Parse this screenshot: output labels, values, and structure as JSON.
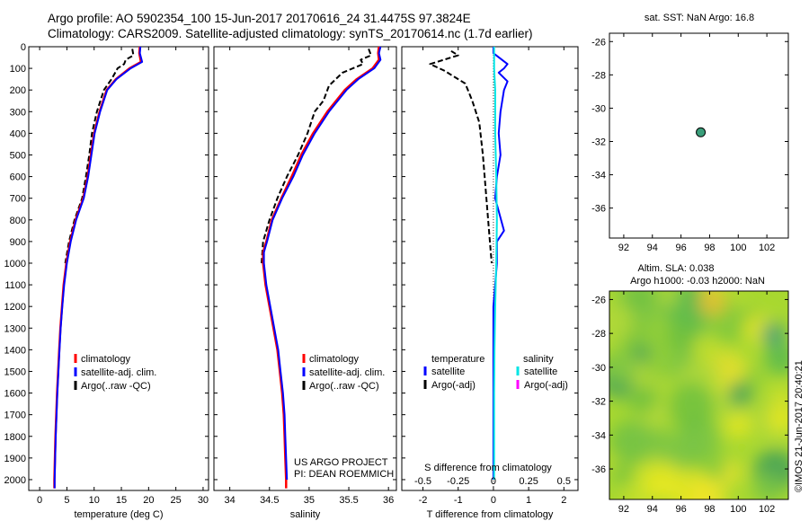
{
  "header": {
    "line1": "Argo profile: AO 5902354_100 15-Jun-2017 20170616_24 31.4475S 97.3824E",
    "line2": "Climatology: CARS2009. Satellite-adjusted climatology: synTS_20170614.nc (1.7d earlier)"
  },
  "colors": {
    "climatology": "#ff0000",
    "satellite": "#0000ff",
    "argo": "#000000",
    "sal_satellite": "#00e5e5",
    "sal_argo": "#ff00ff",
    "marker": "#3a9e7a"
  },
  "legend": {
    "climatology": "climatology",
    "satellite_clim": "satellite-adj. clim.",
    "argo_raw": "Argo(..raw -QC)",
    "temperature": "temperature",
    "salinity": "salinity",
    "satellite": "satellite",
    "argo_adj": "Argo(-adj)"
  },
  "annotations": {
    "project_line1": "US ARGO PROJECT",
    "project_line2": "PI: DEAN ROEMMICH",
    "s_diff_label": "S difference from climatology",
    "sst_label": "sat. SST: NaN Argo: 16.8",
    "sla_label": "Altim. SLA: 0.038",
    "h_label": "Argo h1000: -0.03 h2000: NaN",
    "credit": "©IMOS 21-Jun-2017 20:40:21"
  },
  "chart_data": [
    {
      "type": "line",
      "xlabel": "temperature (deg C)",
      "xlim": [
        -2,
        31
      ],
      "x_ticks": [
        0,
        5,
        10,
        15,
        20,
        25,
        30
      ],
      "ylim": [
        2050,
        0
      ],
      "y_ticks": [
        0,
        100,
        200,
        300,
        400,
        500,
        600,
        700,
        800,
        900,
        1000,
        1100,
        1200,
        1300,
        1400,
        1500,
        1600,
        1700,
        1800,
        1900,
        2000
      ],
      "y_reversed": true,
      "series": [
        {
          "name": "climatology",
          "points": [
            [
              18.4,
              0
            ],
            [
              18.3,
              30
            ],
            [
              18.6,
              70
            ],
            [
              16.5,
              100
            ],
            [
              14,
              150
            ],
            [
              12.3,
              200
            ],
            [
              11,
              300
            ],
            [
              10,
              400
            ],
            [
              9.4,
              500
            ],
            [
              8.8,
              600
            ],
            [
              8,
              700
            ],
            [
              6.6,
              800
            ],
            [
              5.6,
              900
            ],
            [
              4.9,
              1000
            ],
            [
              4.4,
              1100
            ],
            [
              4.1,
              1200
            ],
            [
              3.8,
              1300
            ],
            [
              3.6,
              1400
            ],
            [
              3.4,
              1500
            ],
            [
              3.2,
              1600
            ],
            [
              3.05,
              1700
            ],
            [
              2.9,
              1800
            ],
            [
              2.8,
              1900
            ],
            [
              2.7,
              2000
            ],
            [
              2.7,
              2040
            ]
          ]
        },
        {
          "name": "satellite-adj. clim.",
          "points": [
            [
              18.5,
              0
            ],
            [
              18.4,
              30
            ],
            [
              18.8,
              70
            ],
            [
              16.7,
              100
            ],
            [
              14.1,
              150
            ],
            [
              12.4,
              200
            ],
            [
              11.1,
              300
            ],
            [
              10.1,
              400
            ],
            [
              9.5,
              500
            ],
            [
              8.9,
              600
            ],
            [
              8.1,
              700
            ],
            [
              6.7,
              800
            ],
            [
              5.7,
              900
            ],
            [
              5,
              1000
            ],
            [
              4.5,
              1100
            ],
            [
              4.15,
              1200
            ],
            [
              3.85,
              1300
            ],
            [
              3.65,
              1400
            ],
            [
              3.45,
              1500
            ],
            [
              3.25,
              1600
            ],
            [
              3.1,
              1700
            ],
            [
              2.95,
              1800
            ],
            [
              2.85,
              1900
            ],
            [
              2.75,
              2000
            ],
            [
              2.75,
              2040
            ]
          ]
        },
        {
          "name": "Argo(..raw -QC)",
          "points": [
            [
              17,
              10
            ],
            [
              17.2,
              40
            ],
            [
              15.8,
              60
            ],
            [
              15.5,
              80
            ],
            [
              14.3,
              100
            ],
            [
              13.2,
              150
            ],
            [
              11.8,
              200
            ],
            [
              10.5,
              300
            ],
            [
              9.6,
              400
            ],
            [
              9.1,
              500
            ],
            [
              8.5,
              600
            ],
            [
              7.8,
              700
            ],
            [
              6.4,
              800
            ],
            [
              5.4,
              900
            ],
            [
              4.7,
              1000
            ]
          ]
        }
      ]
    },
    {
      "type": "line",
      "xlabel": "salinity",
      "xlim": [
        33.8,
        36.1
      ],
      "x_ticks": [
        34,
        34.5,
        35,
        35.5,
        36
      ],
      "ylim": [
        2050,
        0
      ],
      "y_reversed": true,
      "series": [
        {
          "name": "climatology",
          "points": [
            [
              35.88,
              0
            ],
            [
              35.87,
              30
            ],
            [
              35.88,
              60
            ],
            [
              35.8,
              100
            ],
            [
              35.6,
              150
            ],
            [
              35.45,
              200
            ],
            [
              35.23,
              300
            ],
            [
              35.05,
              400
            ],
            [
              34.9,
              500
            ],
            [
              34.78,
              600
            ],
            [
              34.65,
              700
            ],
            [
              34.53,
              800
            ],
            [
              34.46,
              900
            ],
            [
              34.42,
              950
            ],
            [
              34.42,
              1000
            ],
            [
              34.45,
              1100
            ],
            [
              34.5,
              1200
            ],
            [
              34.55,
              1300
            ],
            [
              34.6,
              1400
            ],
            [
              34.63,
              1500
            ],
            [
              34.66,
              1600
            ],
            [
              34.68,
              1700
            ],
            [
              34.69,
              1800
            ],
            [
              34.7,
              1900
            ],
            [
              34.71,
              2000
            ],
            [
              34.71,
              2040
            ]
          ]
        },
        {
          "name": "satellite-adj. clim.",
          "points": [
            [
              35.9,
              0
            ],
            [
              35.88,
              30
            ],
            [
              35.9,
              60
            ],
            [
              35.82,
              100
            ],
            [
              35.62,
              150
            ],
            [
              35.47,
              200
            ],
            [
              35.25,
              300
            ],
            [
              35.07,
              400
            ],
            [
              34.92,
              500
            ],
            [
              34.8,
              600
            ],
            [
              34.66,
              700
            ],
            [
              34.54,
              800
            ],
            [
              34.47,
              900
            ],
            [
              34.43,
              950
            ],
            [
              34.43,
              1000
            ],
            [
              34.46,
              1100
            ],
            [
              34.51,
              1200
            ],
            [
              34.56,
              1300
            ],
            [
              34.61,
              1400
            ],
            [
              34.64,
              1500
            ],
            [
              34.67,
              1600
            ],
            [
              34.69,
              1700
            ],
            [
              34.7,
              1800
            ],
            [
              34.71,
              1900
            ],
            [
              34.72,
              2000
            ]
          ]
        },
        {
          "name": "Argo(..raw -QC)",
          "points": [
            [
              35.75,
              10
            ],
            [
              35.78,
              40
            ],
            [
              35.65,
              60
            ],
            [
              35.68,
              80
            ],
            [
              35.42,
              120
            ],
            [
              35.25,
              180
            ],
            [
              35.18,
              250
            ],
            [
              35.07,
              300
            ],
            [
              34.98,
              400
            ],
            [
              34.86,
              500
            ],
            [
              34.72,
              600
            ],
            [
              34.6,
              700
            ],
            [
              34.5,
              800
            ],
            [
              34.42,
              900
            ],
            [
              34.4,
              1000
            ]
          ]
        }
      ]
    },
    {
      "type": "line",
      "xlabel": "T difference from climatology",
      "xlim": [
        -2.6,
        2.4
      ],
      "x_ticks": [
        -2,
        -1,
        0,
        1,
        2
      ],
      "top_ticks_label": "S difference from climatology",
      "top_ticks": [
        -0.5,
        -0.25,
        0,
        0.25,
        0.5
      ],
      "ylim": [
        2050,
        0
      ],
      "y_reversed": true,
      "series": [
        {
          "name": "temperature satellite",
          "points": [
            [
              0,
              0
            ],
            [
              0,
              30
            ],
            [
              0.4,
              80
            ],
            [
              0.3,
              100
            ],
            [
              0.15,
              120
            ],
            [
              0.4,
              160
            ],
            [
              0.3,
              200
            ],
            [
              0.2,
              300
            ],
            [
              0.15,
              400
            ],
            [
              0.2,
              500
            ],
            [
              0.1,
              600
            ],
            [
              0.05,
              700
            ],
            [
              0.3,
              850
            ],
            [
              0.1,
              900
            ],
            [
              0.1,
              1000
            ],
            [
              0.05,
              1100
            ],
            [
              0,
              1200
            ],
            [
              0,
              1400
            ],
            [
              0,
              1600
            ],
            [
              0,
              1800
            ],
            [
              0,
              2000
            ]
          ]
        },
        {
          "name": "temperature Argo(-adj)",
          "points": [
            [
              -1.2,
              20
            ],
            [
              -1.0,
              40
            ],
            [
              -1.8,
              80
            ],
            [
              -1.4,
              110
            ],
            [
              -0.8,
              170
            ],
            [
              -0.6,
              250
            ],
            [
              -0.4,
              350
            ],
            [
              -0.3,
              500
            ],
            [
              -0.2,
              700
            ],
            [
              -0.1,
              900
            ],
            [
              -0.05,
              1000
            ]
          ]
        },
        {
          "name": "salinity satellite",
          "points": [
            [
              0.02,
              0
            ],
            [
              0.02,
              100
            ],
            [
              0.05,
              200
            ],
            [
              0.05,
              400
            ],
            [
              0.08,
              600
            ],
            [
              0.1,
              800
            ],
            [
              0.08,
              1000
            ],
            [
              0.05,
              1200
            ],
            [
              0.03,
              1400
            ],
            [
              0.02,
              1600
            ],
            [
              0.02,
              1800
            ],
            [
              0.02,
              2000
            ]
          ]
        },
        {
          "name": "salinity Argo(-adj)",
          "points": []
        }
      ]
    },
    {
      "type": "scatter",
      "title": "sat. SST: NaN Argo: 16.8",
      "xlim": [
        91,
        103.5
      ],
      "x_ticks": [
        92,
        94,
        96,
        98,
        100,
        102
      ],
      "ylim": [
        -37.8,
        -25.5
      ],
      "y_ticks": [
        -26,
        -28,
        -30,
        -32,
        -34,
        -36
      ],
      "points": [
        [
          97.38,
          -31.45
        ]
      ]
    },
    {
      "type": "heatmap",
      "title": "Argo h1000: -0.03 h2000: NaN",
      "xlim": [
        91,
        103.5
      ],
      "x_ticks": [
        92,
        94,
        96,
        98,
        100,
        102
      ],
      "ylim": [
        -37.8,
        -25.5
      ],
      "y_ticks": [
        -26,
        -28,
        -30,
        -32,
        -34,
        -36
      ]
    }
  ]
}
